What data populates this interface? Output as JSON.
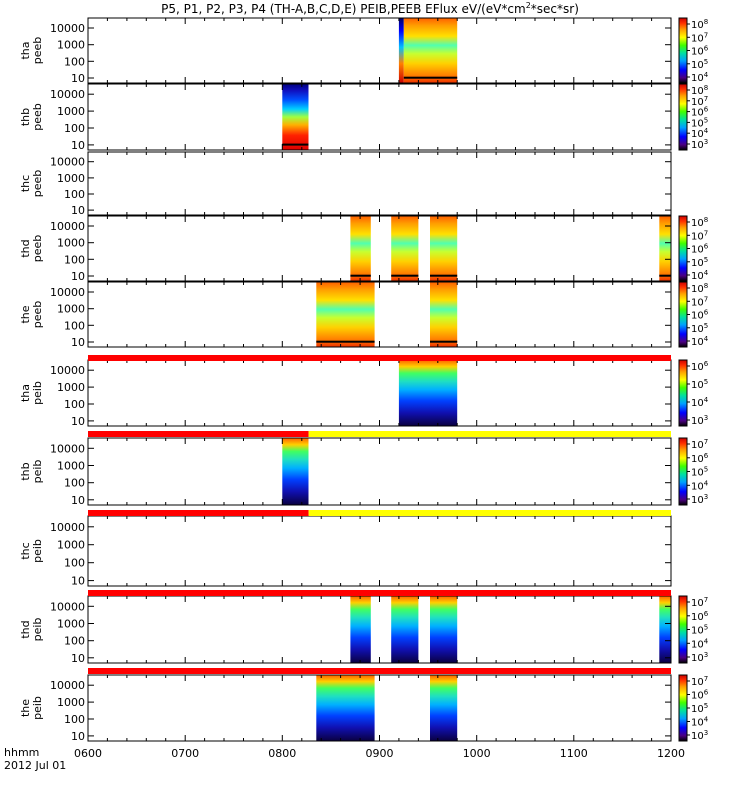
{
  "title": {
    "main": "P5, P1, P2, P3, P4 (TH-A,B,C,D,E) PEIB,PEEB EFlux eV/(eV*cm",
    "sup": "2",
    "tail": "*sec*sr)"
  },
  "footer": {
    "axis_label": "hhmm",
    "date": "2012 Jul 01"
  },
  "chart_data": {
    "type": "heatmap",
    "title": "P5, P1, P2, P3, P4 (TH-A,B,C,D,E) PEIB,PEEB EFlux eV/(eV*cm2*sec*sr)",
    "x_axis": {
      "label": "hhmm",
      "date": "2012 Jul 01",
      "range": [
        600,
        1200
      ],
      "ticks": [
        "0600",
        "0700",
        "0800",
        "0900",
        "1000",
        "1100",
        "1200"
      ]
    },
    "y_scale": "log",
    "y_ticks": [
      "10",
      "100",
      "1000",
      "10000"
    ],
    "panels": [
      {
        "probe": "tha",
        "product": "peeb",
        "ylim": [
          5,
          40000
        ],
        "has_colorbar": true,
        "cbar_ticks": [
          "10^4",
          "10^5",
          "10^6",
          "10^7",
          "10^8"
        ],
        "segments": [
          [
            920,
            925,
            "emission-dark"
          ],
          [
            925,
            980,
            "electron-hot"
          ]
        ]
      },
      {
        "probe": "thb",
        "product": "peeb",
        "ylim": [
          5,
          40000
        ],
        "has_colorbar": true,
        "cbar_ticks": [
          "10^3",
          "10^4",
          "10^5",
          "10^6",
          "10^7",
          "10^8"
        ],
        "segments": [
          [
            800,
            827,
            "electron-cold"
          ]
        ]
      },
      {
        "probe": "thc",
        "product": "peeb",
        "ylim": [
          5,
          40000
        ],
        "has_colorbar": false,
        "cbar_ticks": [],
        "segments": []
      },
      {
        "probe": "thd",
        "product": "peeb",
        "ylim": [
          5,
          40000
        ],
        "has_colorbar": true,
        "cbar_ticks": [
          "10^4",
          "10^5",
          "10^6",
          "10^7",
          "10^8"
        ],
        "segments": [
          [
            870,
            891,
            "electron-hot"
          ],
          [
            912,
            940,
            "electron-hot"
          ],
          [
            952,
            980,
            "electron-hot"
          ],
          [
            1188,
            1200,
            "electron-hot"
          ]
        ]
      },
      {
        "probe": "the",
        "product": "peeb",
        "ylim": [
          5,
          40000
        ],
        "has_colorbar": true,
        "cbar_ticks": [
          "10^4",
          "10^5",
          "10^6",
          "10^7",
          "10^8"
        ],
        "segments": [
          [
            835,
            895,
            "electron-hot"
          ],
          [
            952,
            980,
            "electron-hot"
          ]
        ]
      },
      {
        "probe": "tha",
        "product": "peib",
        "ylim": [
          5,
          40000
        ],
        "has_colorbar": true,
        "cbar_ticks": [
          "10^3",
          "10^4",
          "10^5",
          "10^6"
        ],
        "segments": [
          [
            920,
            980,
            "ion"
          ]
        ]
      },
      {
        "probe": "thb",
        "product": "peib",
        "ylim": [
          5,
          40000
        ],
        "has_colorbar": true,
        "cbar_ticks": [
          "10^3",
          "10^4",
          "10^5",
          "10^6",
          "10^7"
        ],
        "segments": [
          [
            800,
            827,
            "ion"
          ]
        ]
      },
      {
        "probe": "thc",
        "product": "peib",
        "ylim": [
          5,
          40000
        ],
        "has_colorbar": false,
        "cbar_ticks": [],
        "segments": []
      },
      {
        "probe": "thd",
        "product": "peib",
        "ylim": [
          5,
          40000
        ],
        "has_colorbar": true,
        "cbar_ticks": [
          "10^3",
          "10^4",
          "10^5",
          "10^6",
          "10^7"
        ],
        "segments": [
          [
            870,
            891,
            "ion"
          ],
          [
            912,
            940,
            "ion"
          ],
          [
            952,
            980,
            "ion"
          ],
          [
            1188,
            1200,
            "ion"
          ]
        ]
      },
      {
        "probe": "the",
        "product": "peib",
        "ylim": [
          5,
          40000
        ],
        "has_colorbar": true,
        "cbar_ticks": [
          "10^3",
          "10^4",
          "10^5",
          "10^6",
          "10^7"
        ],
        "segments": [
          [
            835,
            895,
            "ion"
          ],
          [
            952,
            980,
            "ion"
          ]
        ]
      }
    ],
    "mode_bars": [
      {
        "after_panel": 5,
        "segments": [
          [
            600,
            1200,
            "#ff0000"
          ]
        ]
      },
      {
        "after_panel": 6,
        "segments": [
          [
            600,
            827,
            "#ff0000"
          ],
          [
            827,
            1200,
            "#ffff00"
          ]
        ]
      },
      {
        "after_panel": 7,
        "segments": [
          [
            600,
            827,
            "#ff0000"
          ],
          [
            827,
            1200,
            "#ffff00"
          ]
        ]
      },
      {
        "after_panel": 8,
        "segments": [
          [
            600,
            1200,
            "#ff0000"
          ]
        ]
      },
      {
        "after_panel": 9,
        "segments": [
          [
            600,
            1200,
            "#ff0000"
          ]
        ]
      }
    ]
  }
}
